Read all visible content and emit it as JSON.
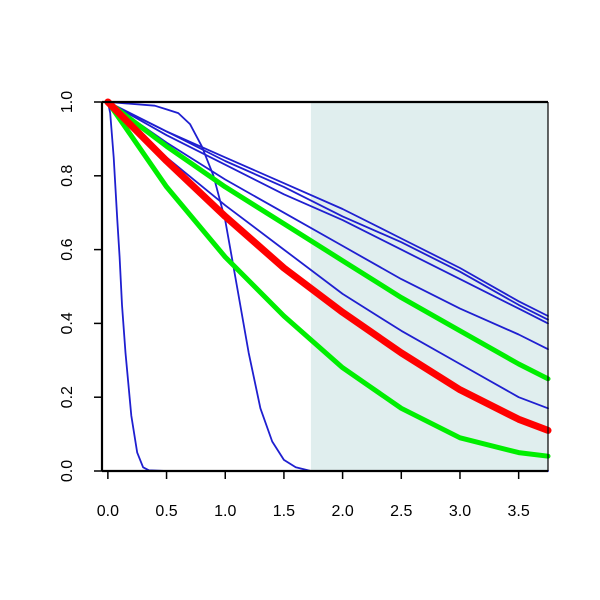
{
  "chart_data": {
    "type": "line",
    "title": "",
    "xlabel": "",
    "ylabel": "",
    "xlim": [
      -0.05,
      3.75
    ],
    "ylim": [
      0.0,
      1.0
    ],
    "x_ticks": [
      0.0,
      0.5,
      1.0,
      1.5,
      2.0,
      2.5,
      3.0,
      3.5
    ],
    "x_tick_labels": [
      "0.0",
      "0.5",
      "1.0",
      "1.5",
      "2.0",
      "2.5",
      "3.0",
      "3.5"
    ],
    "y_ticks": [
      0.0,
      0.2,
      0.4,
      0.6,
      0.8,
      1.0
    ],
    "y_tick_labels": [
      "0.0",
      "0.2",
      "0.4",
      "0.6",
      "0.8",
      "1.0"
    ],
    "grid": false,
    "legend": "none",
    "shaded_region": {
      "x_from": 1.73,
      "x_to": 3.75,
      "color": "#e0eeee"
    },
    "series": [
      {
        "color": "#1f1fd0",
        "width": "thin",
        "x": [
          0,
          0.02,
          0.05,
          0.08,
          0.1,
          0.12,
          0.15,
          0.2,
          0.25,
          0.3,
          0.35,
          0.5,
          1.0,
          3.75
        ],
        "y": [
          1.0,
          0.97,
          0.85,
          0.68,
          0.58,
          0.45,
          0.32,
          0.15,
          0.05,
          0.01,
          0.002,
          0.0,
          0.0,
          0.0
        ]
      },
      {
        "color": "#1f1fd0",
        "width": "thin",
        "x": [
          0,
          0.4,
          0.5,
          0.6,
          0.7,
          0.8,
          0.9,
          1.0,
          1.1,
          1.2,
          1.3,
          1.4,
          1.5,
          1.6,
          1.73,
          3.75
        ],
        "y": [
          1.0,
          0.99,
          0.98,
          0.97,
          0.94,
          0.88,
          0.8,
          0.68,
          0.5,
          0.32,
          0.17,
          0.08,
          0.03,
          0.01,
          0.0,
          0.0
        ]
      },
      {
        "color": "#1f1fd0",
        "width": "thin",
        "x": [
          0,
          0.5,
          1.0,
          1.5,
          2.0,
          2.5,
          3.0,
          3.5,
          3.75
        ],
        "y": [
          1.0,
          0.92,
          0.85,
          0.78,
          0.71,
          0.63,
          0.55,
          0.46,
          0.42
        ]
      },
      {
        "color": "#1f1fd0",
        "width": "thin",
        "x": [
          0,
          0.5,
          1.0,
          1.5,
          2.0,
          2.5,
          3.0,
          3.5,
          3.75
        ],
        "y": [
          1.0,
          0.92,
          0.84,
          0.77,
          0.69,
          0.62,
          0.54,
          0.45,
          0.41
        ]
      },
      {
        "color": "#1f1fd0",
        "width": "thin",
        "x": [
          0,
          0.5,
          1.0,
          1.5,
          2.0,
          2.5,
          3.0,
          3.5,
          3.75
        ],
        "y": [
          1.0,
          0.91,
          0.83,
          0.75,
          0.68,
          0.6,
          0.52,
          0.44,
          0.4
        ]
      },
      {
        "color": "#1f1fd0",
        "width": "thin",
        "x": [
          0,
          0.5,
          1.0,
          1.5,
          2.0,
          2.5,
          3.0,
          3.5,
          3.75
        ],
        "y": [
          1.0,
          0.89,
          0.79,
          0.7,
          0.61,
          0.52,
          0.44,
          0.37,
          0.33
        ]
      },
      {
        "color": "#1f1fd0",
        "width": "thin",
        "x": [
          0,
          0.5,
          1.0,
          1.5,
          2.0,
          2.5,
          3.0,
          3.5,
          3.75
        ],
        "y": [
          1.0,
          0.85,
          0.72,
          0.6,
          0.48,
          0.38,
          0.29,
          0.2,
          0.17
        ]
      },
      {
        "color": "#00ee00",
        "width": "thick",
        "x": [
          0,
          0.5,
          1.0,
          1.5,
          2.0,
          2.5,
          3.0,
          3.5,
          3.75
        ],
        "y": [
          1.0,
          0.88,
          0.77,
          0.67,
          0.57,
          0.47,
          0.38,
          0.29,
          0.25
        ]
      },
      {
        "color": "#00ee00",
        "width": "thick",
        "x": [
          0,
          0.5,
          1.0,
          1.5,
          2.0,
          2.5,
          3.0,
          3.5,
          3.75
        ],
        "y": [
          1.0,
          0.77,
          0.58,
          0.42,
          0.28,
          0.17,
          0.09,
          0.05,
          0.04
        ]
      },
      {
        "color": "#ff0000",
        "width": "thickest",
        "x": [
          0,
          0.5,
          1.0,
          1.5,
          2.0,
          2.5,
          3.0,
          3.5,
          3.75
        ],
        "y": [
          1.0,
          0.84,
          0.69,
          0.55,
          0.43,
          0.32,
          0.22,
          0.14,
          0.11
        ]
      }
    ]
  }
}
